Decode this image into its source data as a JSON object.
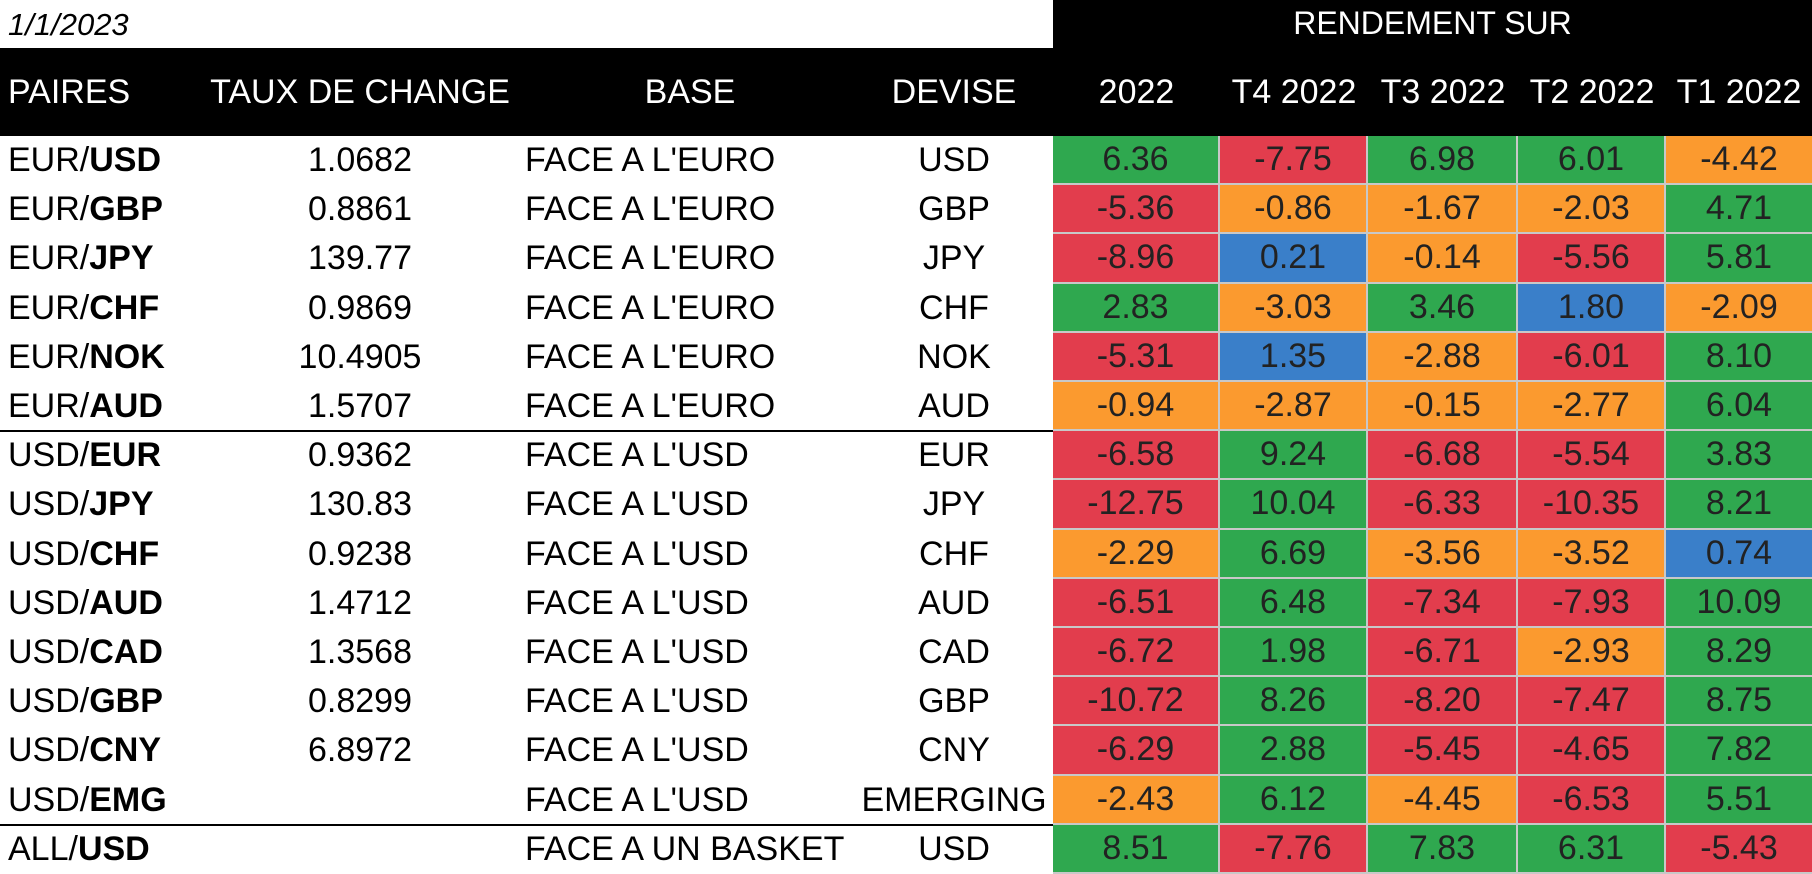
{
  "date": "1/1/2023",
  "group_header": "RENDEMENT SUR",
  "headers": {
    "pair": "PAIRES",
    "rate": "TAUX DE CHANGE",
    "base": "BASE",
    "devise": "DEVISE",
    "periods": [
      "2022",
      "T4 2022",
      "T3 2022",
      "T2 2022",
      "T1 2022"
    ]
  },
  "colors": {
    "green": "#2fa84f",
    "red": "#e23d4d",
    "orange": "#fb9a2f",
    "blue": "#3a7fc9",
    "header_bg": "#000000"
  },
  "rows": [
    {
      "pfx": "EUR/",
      "cur": "USD",
      "rate": "1.0682",
      "base": "FACE A L'EURO",
      "devise": "USD",
      "vals": [
        "6.36",
        "-7.75",
        "6.98",
        "6.01",
        "-4.42"
      ],
      "colors": [
        "green",
        "red",
        "green",
        "green",
        "orange"
      ]
    },
    {
      "pfx": "EUR/",
      "cur": "GBP",
      "rate": "0.8861",
      "base": "FACE A L'EURO",
      "devise": "GBP",
      "vals": [
        "-5.36",
        "-0.86",
        "-1.67",
        "-2.03",
        "4.71"
      ],
      "colors": [
        "red",
        "orange",
        "orange",
        "orange",
        "green"
      ]
    },
    {
      "pfx": "EUR/",
      "cur": "JPY",
      "rate": "139.77",
      "base": "FACE A L'EURO",
      "devise": "JPY",
      "vals": [
        "-8.96",
        "0.21",
        "-0.14",
        "-5.56",
        "5.81"
      ],
      "colors": [
        "red",
        "blue",
        "orange",
        "red",
        "green"
      ]
    },
    {
      "pfx": "EUR/",
      "cur": "CHF",
      "rate": "0.9869",
      "base": "FACE A L'EURO",
      "devise": "CHF",
      "vals": [
        "2.83",
        "-3.03",
        "3.46",
        "1.80",
        "-2.09"
      ],
      "colors": [
        "green",
        "orange",
        "green",
        "blue",
        "orange"
      ]
    },
    {
      "pfx": "EUR/",
      "cur": "NOK",
      "rate": "10.4905",
      "base": "FACE A L'EURO",
      "devise": "NOK",
      "vals": [
        "-5.31",
        "1.35",
        "-2.88",
        "-6.01",
        "8.10"
      ],
      "colors": [
        "red",
        "blue",
        "orange",
        "red",
        "green"
      ]
    },
    {
      "pfx": "EUR/",
      "cur": "AUD",
      "rate": "1.5707",
      "base": "FACE A L'EURO",
      "devise": "AUD",
      "vals": [
        "-0.94",
        "-2.87",
        "-0.15",
        "-2.77",
        "6.04"
      ],
      "colors": [
        "orange",
        "orange",
        "orange",
        "orange",
        "green"
      ]
    },
    {
      "pfx": "USD/",
      "cur": "EUR",
      "rate": "0.9362",
      "base": "FACE A L'USD",
      "devise": "EUR",
      "vals": [
        "-6.58",
        "9.24",
        "-6.68",
        "-5.54",
        "3.83"
      ],
      "colors": [
        "red",
        "green",
        "red",
        "red",
        "green"
      ]
    },
    {
      "pfx": "USD/",
      "cur": "JPY",
      "rate": "130.83",
      "base": "FACE A L'USD",
      "devise": "JPY",
      "vals": [
        "-12.75",
        "10.04",
        "-6.33",
        "-10.35",
        "8.21"
      ],
      "colors": [
        "red",
        "green",
        "red",
        "red",
        "green"
      ]
    },
    {
      "pfx": "USD/",
      "cur": "CHF",
      "rate": "0.9238",
      "base": "FACE A L'USD",
      "devise": "CHF",
      "vals": [
        "-2.29",
        "6.69",
        "-3.56",
        "-3.52",
        "0.74"
      ],
      "colors": [
        "orange",
        "green",
        "orange",
        "orange",
        "blue"
      ]
    },
    {
      "pfx": "USD/",
      "cur": "AUD",
      "rate": "1.4712",
      "base": "FACE A L'USD",
      "devise": "AUD",
      "vals": [
        "-6.51",
        "6.48",
        "-7.34",
        "-7.93",
        "10.09"
      ],
      "colors": [
        "red",
        "green",
        "red",
        "red",
        "green"
      ]
    },
    {
      "pfx": "USD/",
      "cur": "CAD",
      "rate": "1.3568",
      "base": "FACE A L'USD",
      "devise": "CAD",
      "vals": [
        "-6.72",
        "1.98",
        "-6.71",
        "-2.93",
        "8.29"
      ],
      "colors": [
        "red",
        "green",
        "red",
        "orange",
        "green"
      ]
    },
    {
      "pfx": "USD/",
      "cur": "GBP",
      "rate": "0.8299",
      "base": "FACE A L'USD",
      "devise": "GBP",
      "vals": [
        "-10.72",
        "8.26",
        "-8.20",
        "-7.47",
        "8.75"
      ],
      "colors": [
        "red",
        "green",
        "red",
        "red",
        "green"
      ]
    },
    {
      "pfx": "USD/",
      "cur": "CNY",
      "rate": "6.8972",
      "base": "FACE A L'USD",
      "devise": "CNY",
      "vals": [
        "-6.29",
        "2.88",
        "-5.45",
        "-4.65",
        "7.82"
      ],
      "colors": [
        "red",
        "green",
        "red",
        "red",
        "green"
      ]
    },
    {
      "pfx": "USD/",
      "cur": "EMG",
      "rate": "",
      "base": "FACE A L'USD",
      "devise": "EMERGING",
      "vals": [
        "-2.43",
        "6.12",
        "-4.45",
        "-6.53",
        "5.51"
      ],
      "colors": [
        "orange",
        "green",
        "orange",
        "red",
        "green"
      ]
    },
    {
      "pfx": "ALL/",
      "cur": "USD",
      "rate": "",
      "base": "FACE A UN BASKET",
      "devise": "USD",
      "vals": [
        "8.51",
        "-7.76",
        "7.83",
        "6.31",
        "-5.43"
      ],
      "colors": [
        "green",
        "red",
        "green",
        "green",
        "red"
      ]
    }
  ]
}
